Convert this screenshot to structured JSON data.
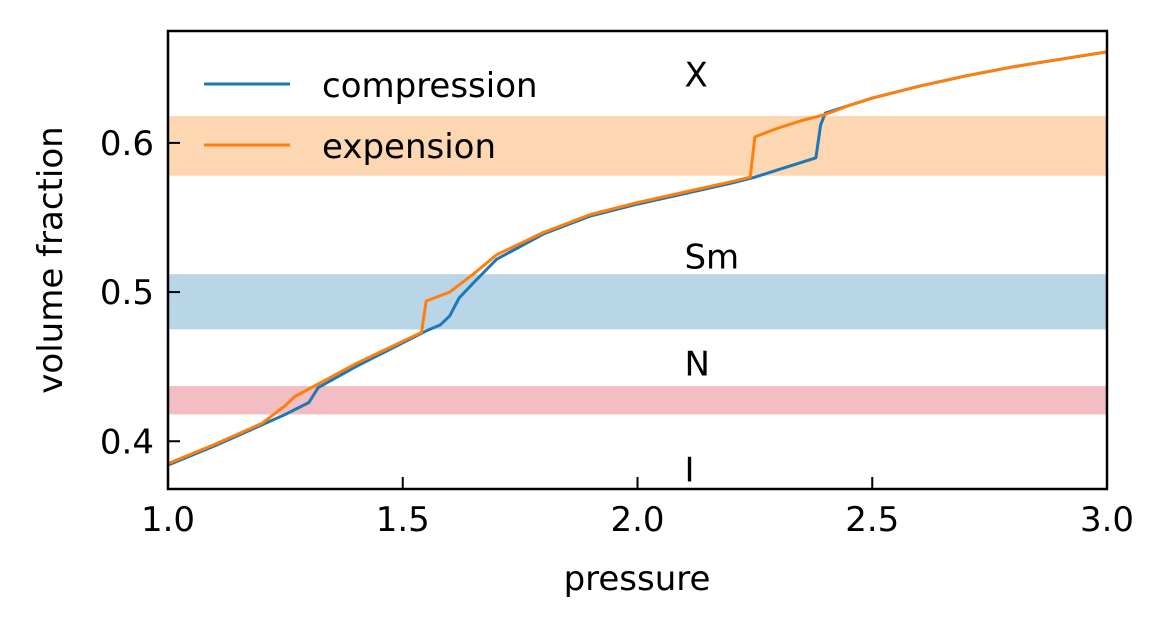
{
  "chart_data": {
    "type": "line",
    "title": "",
    "xlabel": "pressure",
    "ylabel": "volume fraction",
    "xlim": [
      1.0,
      3.0
    ],
    "ylim": [
      0.368,
      0.675
    ],
    "xticks": [
      1.0,
      1.5,
      2.0,
      2.5,
      3.0
    ],
    "xtick_labels": [
      "1.0",
      "1.5",
      "2.0",
      "2.5",
      "3.0"
    ],
    "yticks": [
      0.4,
      0.5,
      0.6
    ],
    "ytick_labels": [
      "0.4",
      "0.5",
      "0.6"
    ],
    "grid": false,
    "legend_position": "top-left",
    "bands": [
      {
        "y0": 0.418,
        "y1": 0.437,
        "color": "#f2bec3"
      },
      {
        "y0": 0.475,
        "y1": 0.512,
        "color": "#b9d5e8"
      },
      {
        "y0": 0.578,
        "y1": 0.618,
        "color": "#fdd6b2"
      }
    ],
    "annotations": [
      {
        "text": "X",
        "x": 2.1,
        "y": 0.646
      },
      {
        "text": "Sm",
        "x": 2.1,
        "y": 0.524
      },
      {
        "text": "N",
        "x": 2.1,
        "y": 0.452
      },
      {
        "text": "I",
        "x": 2.1,
        "y": 0.381
      }
    ],
    "series": [
      {
        "name": "compression",
        "color": "#1f77b4",
        "x": [
          1.0,
          1.1,
          1.2,
          1.25,
          1.3,
          1.32,
          1.4,
          1.5,
          1.55,
          1.58,
          1.6,
          1.62,
          1.65,
          1.7,
          1.8,
          1.9,
          2.0,
          2.1,
          2.2,
          2.25,
          2.3,
          2.35,
          2.38,
          2.39,
          2.4,
          2.45,
          2.5,
          2.6,
          2.7,
          2.8,
          2.9,
          3.0
        ],
        "y": [
          0.384,
          0.397,
          0.411,
          0.418,
          0.426,
          0.436,
          0.45,
          0.466,
          0.474,
          0.478,
          0.484,
          0.496,
          0.506,
          0.522,
          0.539,
          0.551,
          0.559,
          0.566,
          0.573,
          0.577,
          0.582,
          0.587,
          0.59,
          0.612,
          0.62,
          0.625,
          0.63,
          0.638,
          0.645,
          0.651,
          0.656,
          0.661
        ]
      },
      {
        "name": "expension",
        "color": "#ff7f0e",
        "x": [
          1.0,
          1.1,
          1.2,
          1.25,
          1.27,
          1.3,
          1.4,
          1.5,
          1.54,
          1.55,
          1.6,
          1.65,
          1.7,
          1.8,
          1.9,
          2.0,
          2.1,
          2.2,
          2.24,
          2.25,
          2.3,
          2.35,
          2.4,
          2.45,
          2.5,
          2.6,
          2.7,
          2.8,
          2.9,
          3.0
        ],
        "y": [
          0.385,
          0.398,
          0.412,
          0.424,
          0.43,
          0.435,
          0.452,
          0.467,
          0.473,
          0.494,
          0.5,
          0.512,
          0.525,
          0.54,
          0.552,
          0.56,
          0.567,
          0.574,
          0.577,
          0.604,
          0.61,
          0.615,
          0.619,
          0.625,
          0.63,
          0.638,
          0.645,
          0.651,
          0.656,
          0.661
        ]
      }
    ]
  }
}
